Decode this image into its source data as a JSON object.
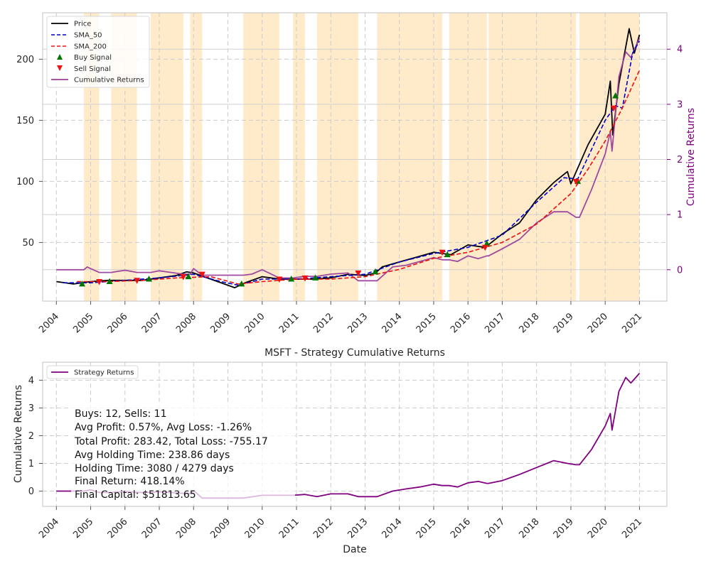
{
  "chart_data": [
    {
      "type": "line",
      "title": "",
      "xlabel": "",
      "ylabel": "",
      "y2label": "Cumulative Returns",
      "xlim": [
        2003.6,
        2021.8
      ],
      "ylim": [
        2,
        238
      ],
      "y2lim": [
        -0.57,
        4.66
      ],
      "x_ticks": [
        "2004",
        "2005",
        "2006",
        "2007",
        "2008",
        "2009",
        "2010",
        "2011",
        "2012",
        "2013",
        "2014",
        "2015",
        "2016",
        "2017",
        "2018",
        "2019",
        "2020",
        "2021"
      ],
      "y_ticks": [
        50,
        100,
        150,
        200
      ],
      "y2_ticks": [
        0,
        1,
        2,
        3,
        4
      ],
      "grid": true,
      "legend_position": "top-left",
      "legend": [
        "Price",
        "SMA_50",
        "SMA_200",
        "Buy Signal",
        "Sell Signal",
        "Cumulative Returns"
      ],
      "colors": {
        "price": "#000000",
        "sma50": "#0000cc",
        "sma200": "#ee1111",
        "buy": "#007700",
        "sell": "#ee1111",
        "cumret": "#9b3f9b",
        "shade": "#ffe8bf",
        "right_axis": "#800080"
      },
      "holding_periods": [
        [
          2004.8,
          2005.25
        ],
        [
          2005.6,
          2006.35
        ],
        [
          2006.75,
          2007.7
        ],
        [
          2007.9,
          2008.25
        ],
        [
          2009.45,
          2010.5
        ],
        [
          2010.9,
          2011.25
        ],
        [
          2011.6,
          2012.8
        ],
        [
          2013.35,
          2015.25
        ],
        [
          2015.45,
          2016.55
        ],
        [
          2016.6,
          2019.15
        ],
        [
          2019.25,
          2021.0
        ]
      ],
      "series": [
        {
          "name": "Price",
          "x": [
            2004.0,
            2004.5,
            2005.0,
            2005.5,
            2006.0,
            2006.5,
            2007.0,
            2007.5,
            2007.8,
            2008.0,
            2008.5,
            2009.0,
            2009.2,
            2009.5,
            2010.0,
            2010.5,
            2011.0,
            2011.5,
            2012.0,
            2012.5,
            2013.0,
            2013.3,
            2013.5,
            2014.0,
            2014.5,
            2015.0,
            2015.5,
            2016.0,
            2016.5,
            2017.0,
            2017.5,
            2018.0,
            2018.5,
            2018.9,
            2019.0,
            2019.5,
            2020.0,
            2020.15,
            2020.22,
            2020.4,
            2020.6,
            2020.7,
            2020.85,
            2021.0
          ],
          "values": [
            18,
            16,
            18,
            19,
            19,
            19,
            21,
            23,
            26,
            25,
            20,
            15,
            13,
            17,
            22,
            20,
            20,
            20,
            21,
            24,
            23,
            25,
            30,
            34,
            38,
            42,
            40,
            48,
            46,
            57,
            66,
            85,
            99,
            108,
            98,
            130,
            155,
            182,
            138,
            180,
            210,
            225,
            205,
            220
          ]
        },
        {
          "name": "SMA_50",
          "x": [
            2004.2,
            2005.0,
            2006.0,
            2007.0,
            2008.0,
            2008.8,
            2009.3,
            2010.0,
            2011.0,
            2012.0,
            2013.0,
            2014.0,
            2015.0,
            2016.0,
            2017.0,
            2018.0,
            2018.8,
            2019.2,
            2020.0,
            2020.3,
            2020.5,
            2020.8,
            2021.0
          ],
          "values": [
            17,
            17,
            19,
            21,
            24,
            18,
            15,
            20,
            20,
            22,
            24,
            34,
            41,
            46,
            56,
            83,
            103,
            102,
            150,
            162,
            160,
            205,
            215
          ]
        },
        {
          "name": "SMA_200",
          "x": [
            2004.6,
            2005.5,
            2006.5,
            2007.5,
            2008.5,
            2009.3,
            2010.0,
            2011.0,
            2012.0,
            2013.0,
            2014.0,
            2015.0,
            2016.0,
            2017.0,
            2018.0,
            2019.0,
            2019.5,
            2020.0,
            2020.5,
            2021.0
          ],
          "values": [
            18,
            18,
            19,
            21,
            22,
            16,
            18,
            20,
            20,
            22,
            28,
            37,
            42,
            50,
            65,
            90,
            110,
            133,
            160,
            191
          ]
        },
        {
          "name": "Buy Signal",
          "x": [
            2004.75,
            2005.55,
            2006.7,
            2007.85,
            2009.4,
            2010.85,
            2011.55,
            2013.3,
            2015.4,
            2016.55,
            2019.2,
            2020.3
          ],
          "values": [
            16,
            18,
            20,
            22,
            16,
            20,
            21,
            26,
            40,
            49,
            100,
            170
          ]
        },
        {
          "name": "Sell Signal",
          "x": [
            2005.25,
            2006.35,
            2007.7,
            2008.25,
            2010.5,
            2011.25,
            2012.8,
            2015.25,
            2016.5,
            2019.15,
            2020.25
          ],
          "values": [
            18,
            19,
            22,
            24,
            20,
            21,
            25,
            42,
            46,
            100,
            160
          ]
        },
        {
          "name": "Cumulative Returns",
          "x": [
            2004.0,
            2004.8,
            2004.9,
            2005.0,
            2005.25,
            2005.6,
            2006.0,
            2006.35,
            2006.75,
            2007.0,
            2007.7,
            2007.9,
            2008.0,
            2008.25,
            2009.45,
            2009.7,
            2010.0,
            2010.5,
            2010.9,
            2011.25,
            2011.6,
            2012.0,
            2012.5,
            2012.8,
            2013.35,
            2013.8,
            2014.2,
            2014.6,
            2015.0,
            2015.25,
            2015.45,
            2015.7,
            2016.0,
            2016.3,
            2016.55,
            2016.6,
            2017.0,
            2017.5,
            2018.0,
            2018.5,
            2018.9,
            2019.15,
            2019.25,
            2019.6,
            2020.0,
            2020.15,
            2020.2,
            2020.4,
            2020.6,
            2020.75,
            2021.0
          ],
          "values": [
            0.0,
            0.0,
            0.05,
            0.02,
            -0.05,
            -0.05,
            -0.01,
            -0.05,
            -0.05,
            -0.02,
            -0.08,
            -0.08,
            0.02,
            -0.1,
            -0.1,
            -0.08,
            0.0,
            -0.15,
            -0.15,
            -0.12,
            -0.12,
            -0.08,
            -0.06,
            -0.2,
            -0.2,
            0.05,
            0.08,
            0.15,
            0.22,
            0.18,
            0.18,
            0.15,
            0.25,
            0.2,
            0.25,
            0.25,
            0.38,
            0.55,
            0.85,
            1.05,
            1.05,
            0.95,
            0.95,
            1.45,
            2.1,
            2.5,
            2.15,
            3.5,
            3.95,
            3.85,
            4.2
          ]
        }
      ]
    },
    {
      "type": "line",
      "title": "MSFT - Strategy Cumulative Returns",
      "xlabel": "Date",
      "ylabel": "Cumulative Returns",
      "xlim": [
        2003.6,
        2021.8
      ],
      "ylim": [
        -0.55,
        4.65
      ],
      "x_ticks": [
        "2004",
        "2005",
        "2006",
        "2007",
        "2008",
        "2009",
        "2010",
        "2011",
        "2012",
        "2013",
        "2014",
        "2015",
        "2016",
        "2017",
        "2018",
        "2019",
        "2020",
        "2021"
      ],
      "y_ticks": [
        0,
        1,
        2,
        3,
        4
      ],
      "grid": true,
      "legend_position": "top-left",
      "legend": [
        "Strategy Returns"
      ],
      "colors": {
        "line": "#800080",
        "line_faded": "#e6bfe6"
      },
      "series": [
        {
          "name": "Strategy Returns",
          "x": [
            2004.0,
            2004.8,
            2005.0,
            2005.25,
            2005.6,
            2006.0,
            2006.35,
            2006.75,
            2007.0,
            2007.7,
            2007.9,
            2008.0,
            2008.25,
            2009.45,
            2010.0,
            2010.5,
            2010.9,
            2011.25,
            2011.6,
            2012.0,
            2012.5,
            2012.8,
            2013.35,
            2013.8,
            2014.2,
            2014.6,
            2015.0,
            2015.25,
            2015.45,
            2015.7,
            2016.0,
            2016.3,
            2016.55,
            2016.6,
            2017.0,
            2017.5,
            2018.0,
            2018.5,
            2018.9,
            2019.15,
            2019.25,
            2019.6,
            2020.0,
            2020.15,
            2020.2,
            2020.4,
            2020.6,
            2020.75,
            2021.0
          ],
          "values": [
            0.0,
            0.0,
            0.05,
            -0.05,
            -0.05,
            -0.01,
            -0.05,
            -0.05,
            -0.02,
            -0.08,
            -0.08,
            0.02,
            -0.25,
            -0.25,
            -0.15,
            -0.15,
            -0.15,
            -0.12,
            -0.2,
            -0.1,
            -0.1,
            -0.2,
            -0.2,
            0.0,
            0.08,
            0.15,
            0.25,
            0.2,
            0.2,
            0.15,
            0.3,
            0.35,
            0.28,
            0.28,
            0.38,
            0.6,
            0.85,
            1.1,
            1.0,
            0.95,
            0.95,
            1.5,
            2.35,
            2.8,
            2.2,
            3.6,
            4.1,
            3.9,
            4.25
          ]
        }
      ],
      "stats": [
        "Buys: 12, Sells: 11",
        "Avg Profit: 0.57%, Avg Loss: -1.26%",
        "Total Profit: 283.42, Total Loss: -755.17",
        "Avg Holding Time: 238.86 days",
        "Holding Time: 3080 / 4279 days",
        "Final Return: 418.14%",
        "Final Capital: $51813.65"
      ]
    }
  ]
}
